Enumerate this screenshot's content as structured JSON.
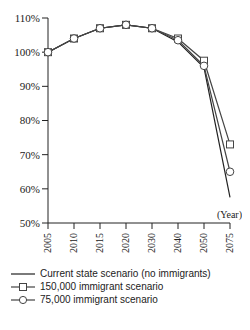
{
  "chart_data": {
    "type": "line",
    "x_label": "(Year)",
    "categories": [
      "2005",
      "2010",
      "2015",
      "2020",
      "2030",
      "2040",
      "2050",
      "2075"
    ],
    "ylim": [
      50,
      110
    ],
    "yticks": [
      {
        "value": 50,
        "label": "50%"
      },
      {
        "value": 60,
        "label": "60%"
      },
      {
        "value": 70,
        "label": "70%"
      },
      {
        "value": 80,
        "label": "80%"
      },
      {
        "value": 90,
        "label": "90%"
      },
      {
        "value": 100,
        "label": "100%"
      },
      {
        "value": 110,
        "label": "110%"
      }
    ],
    "grid": false,
    "series": [
      {
        "name": "Current state scenario (no immigrants)",
        "color": "#222222",
        "marker": "none",
        "values": [
          100,
          104,
          107,
          108,
          107,
          103,
          95.5,
          57.5
        ]
      },
      {
        "name": "150,000 immigrant scenario",
        "color": "#444444",
        "marker": "square",
        "values": [
          100,
          104,
          107,
          108,
          107,
          104,
          97.5,
          73
        ]
      },
      {
        "name": "75,000 immigrant scenario",
        "color": "#444444",
        "marker": "circle",
        "values": [
          100,
          104,
          107,
          108,
          107,
          103.5,
          96,
          65
        ]
      }
    ]
  }
}
